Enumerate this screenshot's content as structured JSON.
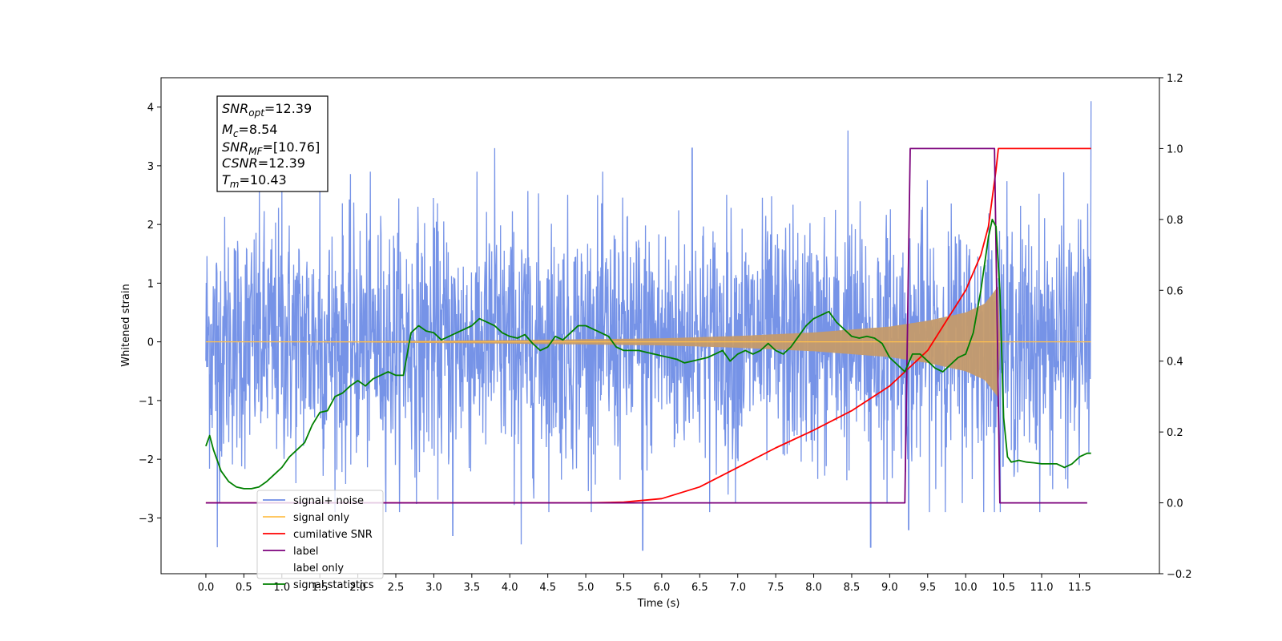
{
  "chart_data": {
    "type": "line",
    "xlabel": "Time (s)",
    "ylabel_left": "Whitened strain",
    "ylabel_right": "",
    "xlim": [
      -0.59,
      12.55
    ],
    "ylim_left": [
      -3.95,
      4.5
    ],
    "ylim_right": [
      -0.2,
      1.2
    ],
    "x_ticks": [
      "0.0",
      "0.5",
      "1.0",
      "1.5",
      "2.0",
      "2.5",
      "3.0",
      "3.5",
      "4.0",
      "4.5",
      "5.0",
      "5.5",
      "6.0",
      "6.5",
      "7.0",
      "7.5",
      "8.0",
      "8.5",
      "9.0",
      "9.5",
      "10.0",
      "10.5",
      "11.0",
      "11.5"
    ],
    "y_ticks_left": [
      "−3",
      "−2",
      "−1",
      "0",
      "1",
      "2",
      "3",
      "4"
    ],
    "y_ticks_right": [
      "−0.2",
      "0.0",
      "0.2",
      "0.4",
      "0.6",
      "0.8",
      "1.0",
      "1.2"
    ],
    "grid": false,
    "legend_position": "lower-left",
    "annotation": {
      "snr_opt": {
        "base": "SNR",
        "sub": "opt",
        "value": "=12.39"
      },
      "mc": {
        "base": "M",
        "sub": "c",
        "value": "=8.54"
      },
      "snr_mf": {
        "base": "SNR",
        "sub": "MF",
        "value": "=[10.76]"
      },
      "csnr": {
        "base": "CSNR",
        "value": "=12.39"
      },
      "tm": {
        "base": "T",
        "sub": "m",
        "value": "=10.43"
      }
    },
    "noise_envelope": {
      "x": [
        0.0,
        11.65
      ],
      "typical_range": [
        -2.5,
        2.5
      ],
      "extremes": [
        {
          "x": 0.15,
          "y": -3.5
        },
        {
          "x": 1.0,
          "y": 2.6
        },
        {
          "x": 1.5,
          "y": 2.9
        },
        {
          "x": 3.25,
          "y": -3.3
        },
        {
          "x": 3.8,
          "y": 3.3
        },
        {
          "x": 4.15,
          "y": -3.45
        },
        {
          "x": 5.75,
          "y": -3.55
        },
        {
          "x": 6.4,
          "y": 3.3
        },
        {
          "x": 8.45,
          "y": 3.6
        },
        {
          "x": 8.75,
          "y": -3.5
        },
        {
          "x": 9.25,
          "y": -3.2
        },
        {
          "x": 11.65,
          "y": 4.1
        }
      ]
    },
    "signal_envelope": {
      "points": [
        [
          0.0,
          0.0
        ],
        [
          2.0,
          0.01
        ],
        [
          4.0,
          0.03
        ],
        [
          6.0,
          0.06
        ],
        [
          7.0,
          0.1
        ],
        [
          8.0,
          0.16
        ],
        [
          9.0,
          0.26
        ],
        [
          9.5,
          0.36
        ],
        [
          10.0,
          0.5
        ],
        [
          10.25,
          0.65
        ],
        [
          10.43,
          0.95
        ],
        [
          10.45,
          0.0
        ],
        [
          11.65,
          0.0
        ]
      ]
    },
    "series": [
      {
        "name": "signal+ noise",
        "color": "#6f8de6",
        "axis": "left"
      },
      {
        "name": "signal only",
        "color": "#ffc04d",
        "axis": "left"
      },
      {
        "name": "cumilative SNR",
        "color": "#ff0000",
        "axis": "right",
        "x": [
          0.0,
          5.0,
          5.5,
          6.0,
          6.5,
          7.0,
          7.5,
          8.0,
          8.5,
          9.0,
          9.5,
          10.0,
          10.2,
          10.3,
          10.4,
          10.43,
          11.65
        ],
        "y": [
          0.0,
          0.0,
          0.002,
          0.012,
          0.045,
          0.1,
          0.155,
          0.205,
          0.26,
          0.33,
          0.43,
          0.6,
          0.7,
          0.78,
          0.94,
          1.0,
          1.0
        ]
      },
      {
        "name": "label",
        "color": "#7b007b",
        "axis": "right",
        "x": [
          0.0,
          9.2,
          9.27,
          10.38,
          10.45,
          11.6
        ],
        "y": [
          0.0,
          0.0,
          1.0,
          1.0,
          0.0,
          0.0
        ]
      },
      {
        "name": "label only",
        "color": "#ffffff",
        "axis": "right",
        "hidden": true
      },
      {
        "name": "signal statistics",
        "color": "#008000",
        "axis": "right",
        "x": [
          0.0,
          0.05,
          0.1,
          0.2,
          0.3,
          0.4,
          0.5,
          0.6,
          0.7,
          0.8,
          0.9,
          1.0,
          1.1,
          1.2,
          1.3,
          1.4,
          1.5,
          1.6,
          1.7,
          1.8,
          1.9,
          2.0,
          2.1,
          2.2,
          2.3,
          2.4,
          2.5,
          2.6,
          2.7,
          2.8,
          2.9,
          3.0,
          3.1,
          3.2,
          3.3,
          3.4,
          3.5,
          3.6,
          3.7,
          3.8,
          3.9,
          4.0,
          4.1,
          4.2,
          4.3,
          4.4,
          4.5,
          4.6,
          4.7,
          4.8,
          4.9,
          5.0,
          5.1,
          5.2,
          5.3,
          5.4,
          5.5,
          5.6,
          5.7,
          5.8,
          5.9,
          6.0,
          6.1,
          6.2,
          6.3,
          6.4,
          6.5,
          6.6,
          6.7,
          6.8,
          6.9,
          7.0,
          7.1,
          7.2,
          7.3,
          7.4,
          7.5,
          7.6,
          7.7,
          7.8,
          7.9,
          8.0,
          8.1,
          8.2,
          8.3,
          8.4,
          8.5,
          8.6,
          8.7,
          8.8,
          8.9,
          9.0,
          9.1,
          9.2,
          9.3,
          9.4,
          9.5,
          9.6,
          9.7,
          9.8,
          9.9,
          10.0,
          10.1,
          10.2,
          10.3,
          10.35,
          10.4,
          10.45,
          10.5,
          10.55,
          10.6,
          10.7,
          10.8,
          10.9,
          11.0,
          11.1,
          11.2,
          11.3,
          11.4,
          11.5,
          11.6,
          11.65
        ],
        "y": [
          0.16,
          0.19,
          0.15,
          0.09,
          0.06,
          0.045,
          0.04,
          0.04,
          0.045,
          0.06,
          0.08,
          0.1,
          0.13,
          0.15,
          0.17,
          0.22,
          0.255,
          0.26,
          0.3,
          0.31,
          0.33,
          0.345,
          0.33,
          0.35,
          0.36,
          0.37,
          0.36,
          0.36,
          0.48,
          0.5,
          0.485,
          0.48,
          0.46,
          0.47,
          0.48,
          0.49,
          0.5,
          0.52,
          0.51,
          0.5,
          0.48,
          0.47,
          0.465,
          0.475,
          0.45,
          0.43,
          0.44,
          0.47,
          0.46,
          0.48,
          0.5,
          0.5,
          0.49,
          0.48,
          0.47,
          0.44,
          0.43,
          0.43,
          0.43,
          0.425,
          0.42,
          0.415,
          0.41,
          0.405,
          0.395,
          0.4,
          0.405,
          0.41,
          0.42,
          0.43,
          0.4,
          0.42,
          0.43,
          0.42,
          0.43,
          0.45,
          0.43,
          0.42,
          0.44,
          0.47,
          0.5,
          0.52,
          0.53,
          0.54,
          0.51,
          0.49,
          0.47,
          0.465,
          0.47,
          0.465,
          0.45,
          0.41,
          0.39,
          0.37,
          0.42,
          0.42,
          0.4,
          0.38,
          0.37,
          0.39,
          0.41,
          0.42,
          0.48,
          0.6,
          0.75,
          0.8,
          0.78,
          0.6,
          0.24,
          0.13,
          0.115,
          0.12,
          0.115,
          0.113,
          0.11,
          0.11,
          0.11,
          0.1,
          0.11,
          0.13,
          0.14,
          0.14
        ]
      }
    ]
  }
}
